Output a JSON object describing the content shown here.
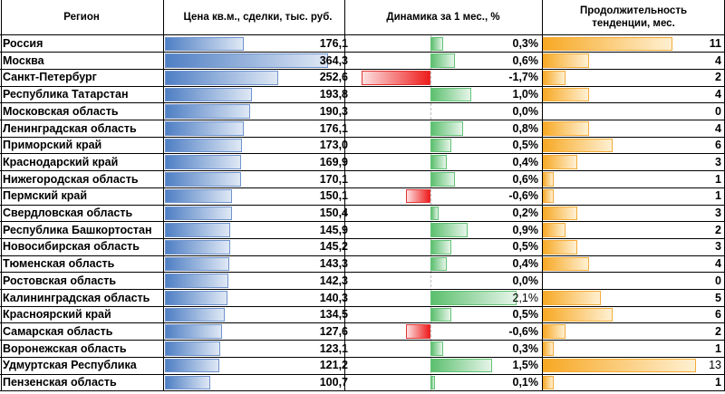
{
  "headers": {
    "region": "Регион",
    "price": "Цена кв.м., сделки, тыс. руб.",
    "dynamics": "Динамика за 1 мес., %",
    "duration": "Продолжительность тенденции, мес."
  },
  "chart_data": {
    "type": "table",
    "price_max": 364.3,
    "dyn_range": [
      -1.7,
      2.1
    ],
    "dur_max": 13,
    "colors": {
      "price": "#4f7fc4",
      "positive": "#5cbf6e",
      "negative": "#ee1c1c",
      "duration": "#f7a823"
    },
    "rows": [
      {
        "region": "Россия",
        "price": 176.1,
        "price_label": "176,1",
        "dyn": 0.3,
        "dyn_label": "0,3%",
        "dur": 11,
        "dur_label": "11"
      },
      {
        "region": "Москва",
        "price": 364.3,
        "price_label": "364,3",
        "dyn": 0.6,
        "dyn_label": "0,6%",
        "dur": 4,
        "dur_label": "4"
      },
      {
        "region": "Санкт-Петербург",
        "price": 252.6,
        "price_label": "252,6",
        "dyn": -1.7,
        "dyn_label": "-1,7%",
        "dur": 2,
        "dur_label": "2"
      },
      {
        "region": "Республика Татарстан",
        "price": 193.8,
        "price_label": "193,8",
        "dyn": 1.0,
        "dyn_label": "1,0%",
        "dur": 4,
        "dur_label": "4"
      },
      {
        "region": "Московская область",
        "price": 190.3,
        "price_label": "190,3",
        "dyn": 0.0,
        "dyn_label": "0,0%",
        "dur": 0,
        "dur_label": "0"
      },
      {
        "region": "Ленинградская область",
        "price": 176.1,
        "price_label": "176,1",
        "dyn": 0.8,
        "dyn_label": "0,8%",
        "dur": 4,
        "dur_label": "4"
      },
      {
        "region": "Приморский край",
        "price": 173.0,
        "price_label": "173,0",
        "dyn": 0.5,
        "dyn_label": "0,5%",
        "dur": 6,
        "dur_label": "6"
      },
      {
        "region": "Краснодарский край",
        "price": 169.9,
        "price_label": "169,9",
        "dyn": 0.4,
        "dyn_label": "0,4%",
        "dur": 3,
        "dur_label": "3"
      },
      {
        "region": "Нижегородская область",
        "price": 170.1,
        "price_label": "170,1",
        "dyn": 0.6,
        "dyn_label": "0,6%",
        "dur": 1,
        "dur_label": "1"
      },
      {
        "region": "Пермский край",
        "price": 150.1,
        "price_label": "150,1",
        "dyn": -0.6,
        "dyn_label": "-0,6%",
        "dur": 1,
        "dur_label": "1"
      },
      {
        "region": "Свердловская область",
        "price": 150.4,
        "price_label": "150,4",
        "dyn": 0.2,
        "dyn_label": "0,2%",
        "dur": 3,
        "dur_label": "3"
      },
      {
        "region": "Республика Башкортостан",
        "price": 145.9,
        "price_label": "145,9",
        "dyn": 0.9,
        "dyn_label": "0,9%",
        "dur": 2,
        "dur_label": "2"
      },
      {
        "region": "Новосибирская область",
        "price": 145.2,
        "price_label": "145,2",
        "dyn": 0.5,
        "dyn_label": "0,5%",
        "dur": 3,
        "dur_label": "3"
      },
      {
        "region": "Тюменская область",
        "price": 143.3,
        "price_label": "143,3",
        "dyn": 0.4,
        "dyn_label": "0,4%",
        "dur": 4,
        "dur_label": "4"
      },
      {
        "region": "Ростовская область",
        "price": 142.3,
        "price_label": "142,3",
        "dyn": 0.0,
        "dyn_label": "0,0%",
        "dur": 0,
        "dur_label": "0"
      },
      {
        "region": "Калининградская область",
        "price": 140.3,
        "price_label": "140,3",
        "dyn": 2.1,
        "dyn_label": "2,1%",
        "dur": 5,
        "dur_label": "5"
      },
      {
        "region": "Красноярский край",
        "price": 134.5,
        "price_label": "134,5",
        "dyn": 0.5,
        "dyn_label": "0,5%",
        "dur": 6,
        "dur_label": "6"
      },
      {
        "region": "Самарская область",
        "price": 127.6,
        "price_label": "127,6",
        "dyn": -0.6,
        "dyn_label": "-0,6%",
        "dur": 2,
        "dur_label": "2"
      },
      {
        "region": "Воронежская область",
        "price": 123.1,
        "price_label": "123,1",
        "dyn": 0.3,
        "dyn_label": "0,3%",
        "dur": 1,
        "dur_label": "1"
      },
      {
        "region": "Удмуртская Республика",
        "price": 121.2,
        "price_label": "121,2",
        "dyn": 1.5,
        "dyn_label": "1,5%",
        "dur": 13,
        "dur_label": "13"
      },
      {
        "region": "Пензенская область",
        "price": 100.7,
        "price_label": "100,7",
        "dyn": 0.1,
        "dyn_label": "0,1%",
        "dur": 1,
        "dur_label": "1"
      }
    ]
  }
}
